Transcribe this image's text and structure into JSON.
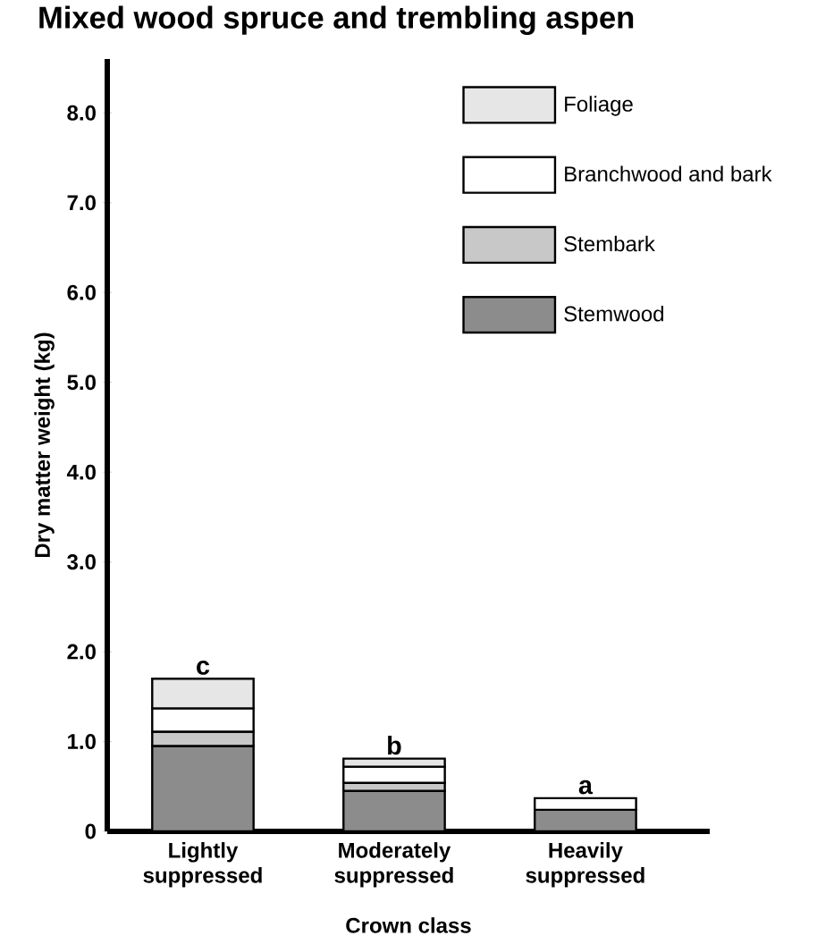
{
  "chart_data": {
    "type": "bar",
    "stacked": true,
    "title": "Mixed wood spruce and trembling aspen",
    "xlabel": "Crown class",
    "ylabel": "Dry matter weight (kg)",
    "categories": [
      "Lightly suppressed",
      "Moderately suppressed",
      "Heavily suppressed"
    ],
    "series": [
      {
        "name": "Stemwood",
        "color": "#8c8c8c",
        "values": [
          0.95,
          0.45,
          0.24
        ]
      },
      {
        "name": "Stembark",
        "color": "#c8c8c8",
        "values": [
          0.16,
          0.09,
          null
        ]
      },
      {
        "name": "Branchwood and bark",
        "color": "#ffffff",
        "values": [
          0.26,
          0.18,
          0.13
        ]
      },
      {
        "name": "Foliage",
        "color": "#e6e6e6",
        "values": [
          0.33,
          0.09,
          null
        ]
      }
    ],
    "ylim": [
      0,
      8.6
    ],
    "yticks": [
      0,
      {
        "value": 1,
        "label": "1.0"
      },
      {
        "value": 2,
        "label": "2.0"
      },
      {
        "value": 3,
        "label": "3.0"
      },
      {
        "value": 4,
        "label": "4.0"
      },
      {
        "value": 5,
        "label": "5.0"
      },
      {
        "value": 6,
        "label": "6.0"
      },
      {
        "value": 7,
        "label": "7.0"
      },
      {
        "value": 8,
        "label": "8.0"
      }
    ],
    "legend": "top right",
    "annotations": [
      {
        "text": "c",
        "x": "Lightly suppressed",
        "y": 1.7
      },
      {
        "text": "b",
        "x": "Moderately suppressed",
        "y": 0.81
      },
      {
        "text": "a",
        "x": "Heavily suppressed",
        "y": 0.37
      }
    ]
  }
}
